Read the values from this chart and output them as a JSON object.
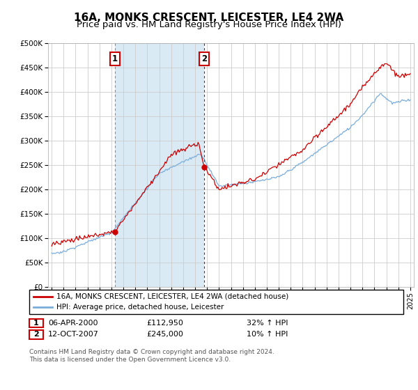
{
  "title1": "16A, MONKS CRESCENT, LEICESTER, LE4 2WA",
  "title2": "Price paid vs. HM Land Registry's House Price Index (HPI)",
  "ylabel_ticks": [
    "£0",
    "£50K",
    "£100K",
    "£150K",
    "£200K",
    "£250K",
    "£300K",
    "£350K",
    "£400K",
    "£450K",
    "£500K"
  ],
  "ytick_values": [
    0,
    50000,
    100000,
    150000,
    200000,
    250000,
    300000,
    350000,
    400000,
    450000,
    500000
  ],
  "ylim": [
    0,
    500000
  ],
  "xlim_start": 1994.7,
  "xlim_end": 2025.3,
  "background_color": "#ffffff",
  "plot_bg": "#ffffff",
  "grid_color": "#cccccc",
  "hpi_color": "#7aaddb",
  "property_color": "#cc0000",
  "shade_color": "#daeaf5",
  "sale1_date": 2000.27,
  "sale1_value": 112950,
  "sale2_date": 2007.78,
  "sale2_value": 245000,
  "legend_label1": "16A, MONKS CRESCENT, LEICESTER, LE4 2WA (detached house)",
  "legend_label2": "HPI: Average price, detached house, Leicester",
  "annotation1_label": "1",
  "annotation2_label": "2",
  "table_rows": [
    [
      "1",
      "06-APR-2000",
      "£112,950",
      "32% ↑ HPI"
    ],
    [
      "2",
      "12-OCT-2007",
      "£245,000",
      "10% ↑ HPI"
    ]
  ],
  "footer": "Contains HM Land Registry data © Crown copyright and database right 2024.\nThis data is licensed under the Open Government Licence v3.0.",
  "title_fontsize": 11,
  "subtitle_fontsize": 9.5
}
